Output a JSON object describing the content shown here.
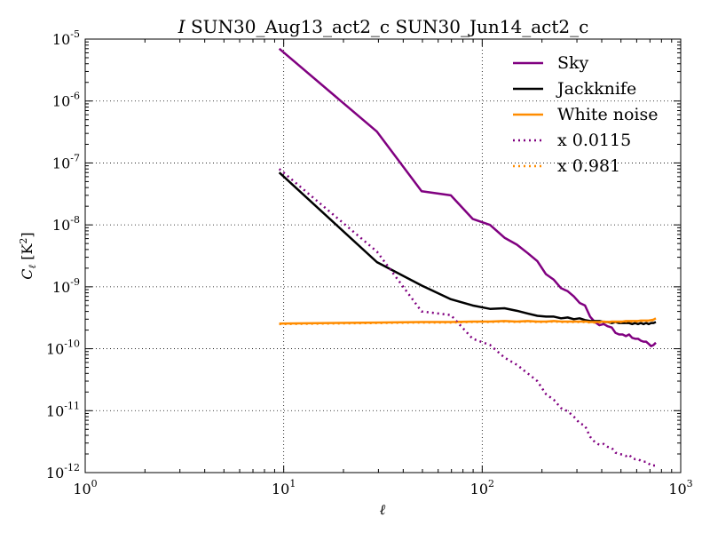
{
  "chart_data": {
    "type": "line",
    "title": {
      "prefix": "I",
      "text": "SUN30_Aug13_act2_c SUN30_Jun14_act2_c"
    },
    "xlabel": "ℓ",
    "ylabel": {
      "main": "C",
      "sub": "ℓ",
      "unit": "[K",
      "unit_sup": "2",
      "unit_close": "]"
    },
    "xscale": "log",
    "yscale": "log",
    "xlim": [
      1,
      1000
    ],
    "ylim": [
      1e-12,
      1e-05
    ],
    "grid": true,
    "legend_position": "top-right",
    "x_ticks": [
      {
        "value": 1,
        "base": "10",
        "exp": "0"
      },
      {
        "value": 10,
        "base": "10",
        "exp": "1"
      },
      {
        "value": 100,
        "base": "10",
        "exp": "2"
      },
      {
        "value": 1000,
        "base": "10",
        "exp": "3"
      }
    ],
    "y_ticks": [
      {
        "value": 1e-12,
        "base": "10",
        "exp": "-12"
      },
      {
        "value": 1e-11,
        "base": "10",
        "exp": "-11"
      },
      {
        "value": 1e-10,
        "base": "10",
        "exp": "-10"
      },
      {
        "value": 1e-09,
        "base": "10",
        "exp": "-9"
      },
      {
        "value": 1e-08,
        "base": "10",
        "exp": "-8"
      },
      {
        "value": 1e-07,
        "base": "10",
        "exp": "-7"
      },
      {
        "value": 1e-06,
        "base": "10",
        "exp": "-6"
      },
      {
        "value": 1e-05,
        "base": "10",
        "exp": "-5"
      }
    ],
    "series": [
      {
        "name": "Sky",
        "color": "#800080",
        "style": "solid",
        "x": [
          9.5,
          29.5,
          49.5,
          69.5,
          89.5,
          109.5,
          129.5,
          149.5,
          169.5,
          189.5,
          209.5,
          229.5,
          249.5,
          269.5,
          289.5,
          309.5,
          329.5,
          349.5,
          369.5,
          389.5,
          409.5,
          429.5,
          449.5,
          469.5,
          489.5,
          509.5,
          529.5,
          549.5,
          569.5,
          589.5,
          609.5,
          629.5,
          649.5,
          669.5,
          689.5,
          709.5,
          729.5,
          749.5
        ],
        "y": [
          7e-06,
          3.2e-07,
          3.5e-08,
          3e-08,
          1.25e-08,
          1e-08,
          6.2e-09,
          4.8e-09,
          3.5e-09,
          2.6e-09,
          1.6e-09,
          1.3e-09,
          9.5e-10,
          8.5e-10,
          7e-10,
          5.5e-10,
          5e-10,
          3.3e-10,
          2.7e-10,
          2.4e-10,
          2.5e-10,
          2.3e-10,
          2.2e-10,
          1.8e-10,
          1.7e-10,
          1.7e-10,
          1.6e-10,
          1.7e-10,
          1.5e-10,
          1.45e-10,
          1.45e-10,
          1.35e-10,
          1.3e-10,
          1.3e-10,
          1.2e-10,
          1.1e-10,
          1.15e-10,
          1.25e-10
        ]
      },
      {
        "name": "Jackknife",
        "color": "#000000",
        "style": "solid",
        "x": [
          9.5,
          29.5,
          49.5,
          69.5,
          89.5,
          109.5,
          129.5,
          149.5,
          169.5,
          189.5,
          209.5,
          229.5,
          249.5,
          269.5,
          289.5,
          309.5,
          329.5,
          349.5,
          369.5,
          389.5,
          409.5,
          429.5,
          449.5,
          469.5,
          489.5,
          509.5,
          529.5,
          549.5,
          569.5,
          589.5,
          609.5,
          629.5,
          649.5,
          669.5,
          689.5,
          709.5,
          729.5,
          749.5
        ],
        "y": [
          7e-08,
          2.5e-09,
          1.05e-09,
          6.3e-10,
          5e-10,
          4.4e-10,
          4.5e-10,
          4.1e-10,
          3.7e-10,
          3.4e-10,
          3.3e-10,
          3.3e-10,
          3.1e-10,
          3.2e-10,
          3e-10,
          3.1e-10,
          2.9e-10,
          2.8e-10,
          2.8e-10,
          2.8e-10,
          2.7e-10,
          2.7e-10,
          2.6e-10,
          2.7e-10,
          2.6e-10,
          2.6e-10,
          2.6e-10,
          2.6e-10,
          2.5e-10,
          2.6e-10,
          2.5e-10,
          2.6e-10,
          2.5e-10,
          2.6e-10,
          2.5e-10,
          2.6e-10,
          2.6e-10,
          2.7e-10
        ]
      },
      {
        "name": "White noise",
        "color": "#ff8c00",
        "style": "solid",
        "x": [
          9.5,
          29.5,
          49.5,
          69.5,
          89.5,
          109.5,
          129.5,
          149.5,
          169.5,
          189.5,
          209.5,
          229.5,
          249.5,
          269.5,
          289.5,
          309.5,
          329.5,
          349.5,
          369.5,
          389.5,
          409.5,
          429.5,
          449.5,
          469.5,
          489.5,
          509.5,
          529.5,
          549.5,
          569.5,
          589.5,
          609.5,
          629.5,
          649.5,
          669.5,
          689.5,
          709.5,
          729.5,
          749.5
        ],
        "y": [
          2.55e-10,
          2.65e-10,
          2.7e-10,
          2.7e-10,
          2.75e-10,
          2.75e-10,
          2.8e-10,
          2.75e-10,
          2.8e-10,
          2.75e-10,
          2.75e-10,
          2.8e-10,
          2.75e-10,
          2.75e-10,
          2.75e-10,
          2.75e-10,
          2.75e-10,
          2.7e-10,
          2.7e-10,
          2.7e-10,
          2.75e-10,
          2.7e-10,
          2.75e-10,
          2.75e-10,
          2.75e-10,
          2.75e-10,
          2.8e-10,
          2.8e-10,
          2.8e-10,
          2.8e-10,
          2.8e-10,
          2.85e-10,
          2.85e-10,
          2.85e-10,
          2.85e-10,
          2.9e-10,
          2.95e-10,
          3.1e-10
        ]
      },
      {
        "name": "x 0.0115",
        "color": "#800080",
        "style": "dotted",
        "x": [
          9.5,
          29.5,
          49.5,
          69.5,
          89.5,
          109.5,
          129.5,
          149.5,
          169.5,
          189.5,
          209.5,
          229.5,
          249.5,
          269.5,
          289.5,
          309.5,
          329.5,
          349.5,
          369.5,
          389.5,
          409.5,
          429.5,
          449.5,
          469.5,
          489.5,
          509.5,
          529.5,
          549.5,
          569.5,
          589.5,
          609.5,
          629.5,
          649.5,
          669.5,
          689.5,
          709.5,
          729.5,
          749.5
        ],
        "y": [
          8e-08,
          3.7e-09,
          4e-10,
          3.5e-10,
          1.45e-10,
          1.15e-10,
          7.2e-11,
          5.5e-11,
          4e-11,
          3e-11,
          1.85e-11,
          1.5e-11,
          1.1e-11,
          9.8e-12,
          8e-12,
          6.3e-12,
          5.7e-12,
          3.8e-12,
          3.1e-12,
          2.8e-12,
          2.9e-12,
          2.6e-12,
          2.5e-12,
          2.1e-12,
          2e-12,
          1.95e-12,
          1.85e-12,
          1.95e-12,
          1.7e-12,
          1.65e-12,
          1.65e-12,
          1.55e-12,
          1.5e-12,
          1.5e-12,
          1.4e-12,
          1.3e-12,
          1.3e-12,
          1.3e-12
        ]
      },
      {
        "name": "x 0.981",
        "color": "#ff8c00",
        "style": "dotted",
        "x": [
          9.5,
          29.5,
          49.5,
          69.5,
          89.5,
          109.5,
          129.5,
          149.5,
          169.5,
          189.5,
          209.5,
          229.5,
          249.5,
          269.5,
          289.5,
          309.5,
          329.5,
          349.5,
          369.5,
          389.5,
          409.5,
          429.5,
          449.5,
          469.5,
          489.5,
          509.5,
          529.5,
          549.5,
          569.5,
          589.5,
          609.5,
          629.5,
          649.5,
          669.5,
          689.5,
          709.5,
          729.5,
          749.5
        ],
        "y": [
          2.5e-10,
          2.6e-10,
          2.65e-10,
          2.65e-10,
          2.7e-10,
          2.7e-10,
          2.75e-10,
          2.7e-10,
          2.75e-10,
          2.7e-10,
          2.7e-10,
          2.75e-10,
          2.7e-10,
          2.7e-10,
          2.7e-10,
          2.7e-10,
          2.7e-10,
          2.65e-10,
          2.65e-10,
          2.65e-10,
          2.7e-10,
          2.65e-10,
          2.7e-10,
          2.7e-10,
          2.7e-10,
          2.7e-10,
          2.75e-10,
          2.75e-10,
          2.75e-10,
          2.75e-10,
          2.75e-10,
          2.8e-10,
          2.8e-10,
          2.8e-10,
          2.8e-10,
          2.85e-10,
          2.9e-10,
          3.05e-10
        ]
      }
    ]
  }
}
